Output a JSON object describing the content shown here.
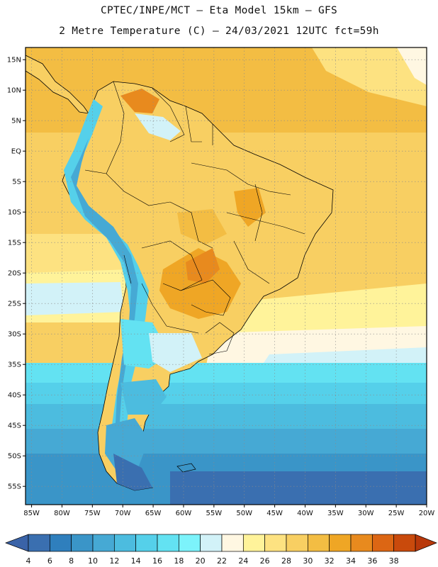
{
  "header": {
    "line1": "CPTEC/INPE/MCT –  Eta Model 15km – GFS",
    "line2": "2 Metre Temperature (C) – 24/03/2021 12UTC fct=59h"
  },
  "axes": {
    "lat_labels": [
      "15N",
      "10N",
      "5N",
      "EQ",
      "5S",
      "10S",
      "15S",
      "20S",
      "25S",
      "30S",
      "35S",
      "40S",
      "45S",
      "50S",
      "55S"
    ],
    "lat_values": [
      15,
      10,
      5,
      0,
      -5,
      -10,
      -15,
      -20,
      -25,
      -30,
      -35,
      -40,
      -45,
      -50,
      -55
    ],
    "lon_labels": [
      "85W",
      "80W",
      "75W",
      "70W",
      "65W",
      "60W",
      "55W",
      "50W",
      "45W",
      "40W",
      "35W",
      "30W",
      "25W",
      "20W"
    ],
    "lon_values": [
      -85,
      -80,
      -75,
      -70,
      -65,
      -60,
      -55,
      -50,
      -45,
      -40,
      -35,
      -30,
      -25,
      -20
    ]
  },
  "colorbar": {
    "labels": [
      "4",
      "6",
      "8",
      "10",
      "12",
      "14",
      "16",
      "18",
      "20",
      "22",
      "24",
      "26",
      "28",
      "30",
      "32",
      "34",
      "36",
      "38"
    ],
    "colors": [
      "#3a6fb0",
      "#2f7fbd",
      "#3a95c8",
      "#46a9d4",
      "#4cbcdf",
      "#55d0ea",
      "#63e2f2",
      "#7cf3fb",
      "#d2f2f8",
      "#fff7e2",
      "#fff39a",
      "#fde281",
      "#f8cf62",
      "#f3bd43",
      "#efa625",
      "#e88a1e",
      "#dc6614",
      "#c94a0c"
    ],
    "under_color": "#3a63a8",
    "over_color": "#b8380a"
  },
  "chart_data": {
    "type": "heatmap",
    "title": "2 Metre Temperature (C) – 24/03/2021 12UTC fct=59h",
    "source": "CPTEC/INPE/MCT –  Eta Model 15km – GFS",
    "variable": "2 Metre Temperature",
    "units": "C",
    "xlim": [
      -86,
      -20
    ],
    "ylim": [
      -58,
      17
    ],
    "color_levels": [
      4,
      6,
      8,
      10,
      12,
      14,
      16,
      18,
      20,
      22,
      24,
      26,
      28,
      30,
      32,
      34,
      36,
      38
    ]
  }
}
